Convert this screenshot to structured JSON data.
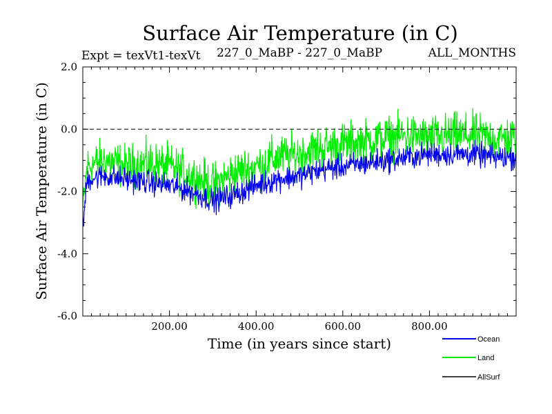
{
  "chart_data": {
    "type": "line",
    "title": "Surface Air Temperature (in C)",
    "experiment": "Expt = texVt1-texVt",
    "comparison": "227_0_MaBP - 227_0_MaBP",
    "period": "ALL_MONTHS",
    "xlabel": "Time (in years since start)",
    "ylabel": "Surface Air Temperature (in C)",
    "xlim": [
      0,
      1000
    ],
    "ylim": [
      -6.0,
      2.0
    ],
    "x_ticks": [
      {
        "value": 200,
        "label": "200.00"
      },
      {
        "value": 400,
        "label": "400.00"
      },
      {
        "value": 600,
        "label": "600.00"
      },
      {
        "value": 800,
        "label": "800.00"
      }
    ],
    "y_ticks": [
      {
        "value": 2.0,
        "label": "2.0"
      },
      {
        "value": 0.0,
        "label": "0.0"
      },
      {
        "value": -2.0,
        "label": "-2.0"
      },
      {
        "value": -4.0,
        "label": "-4.0"
      },
      {
        "value": -6.0,
        "label": "-6.0"
      }
    ],
    "reference_line": {
      "value": 0.0,
      "style": "dashed"
    },
    "series": [
      {
        "name": "Land",
        "color": "#00ee00",
        "trend": [
          [
            0,
            -2.6
          ],
          [
            10,
            -1.2
          ],
          [
            50,
            -1.0
          ],
          [
            100,
            -1.2
          ],
          [
            150,
            -1.1
          ],
          [
            200,
            -1.2
          ],
          [
            250,
            -1.5
          ],
          [
            300,
            -1.8
          ],
          [
            350,
            -1.4
          ],
          [
            400,
            -1.2
          ],
          [
            450,
            -0.9
          ],
          [
            500,
            -0.8
          ],
          [
            550,
            -0.6
          ],
          [
            600,
            -0.5
          ],
          [
            650,
            -0.4
          ],
          [
            700,
            -0.3
          ],
          [
            750,
            -0.2
          ],
          [
            800,
            -0.3
          ],
          [
            850,
            -0.2
          ],
          [
            900,
            -0.2
          ],
          [
            950,
            -0.3
          ],
          [
            1000,
            -0.3
          ]
        ],
        "spread": 1.0
      },
      {
        "name": "Ocean",
        "color": "#0000ee",
        "trend": [
          [
            0,
            -3.2
          ],
          [
            10,
            -1.6
          ],
          [
            50,
            -1.5
          ],
          [
            100,
            -1.6
          ],
          [
            150,
            -1.7
          ],
          [
            200,
            -1.8
          ],
          [
            250,
            -2.0
          ],
          [
            300,
            -2.3
          ],
          [
            350,
            -2.1
          ],
          [
            400,
            -1.8
          ],
          [
            450,
            -1.6
          ],
          [
            500,
            -1.5
          ],
          [
            550,
            -1.3
          ],
          [
            600,
            -1.2
          ],
          [
            650,
            -1.1
          ],
          [
            700,
            -1.0
          ],
          [
            750,
            -0.9
          ],
          [
            800,
            -0.8
          ],
          [
            850,
            -0.8
          ],
          [
            900,
            -0.8
          ],
          [
            950,
            -0.9
          ],
          [
            1000,
            -0.9
          ]
        ],
        "spread": 0.55
      },
      {
        "name": "AllSurf",
        "color": "#000000",
        "trend": [],
        "spread": 0
      }
    ],
    "legend": [
      {
        "name": "Ocean",
        "color": "#0000ee"
      },
      {
        "name": "Land",
        "color": "#00ee00"
      },
      {
        "name": "AllSurf",
        "color": "#000000"
      }
    ],
    "legend_position": "bottom-right"
  }
}
